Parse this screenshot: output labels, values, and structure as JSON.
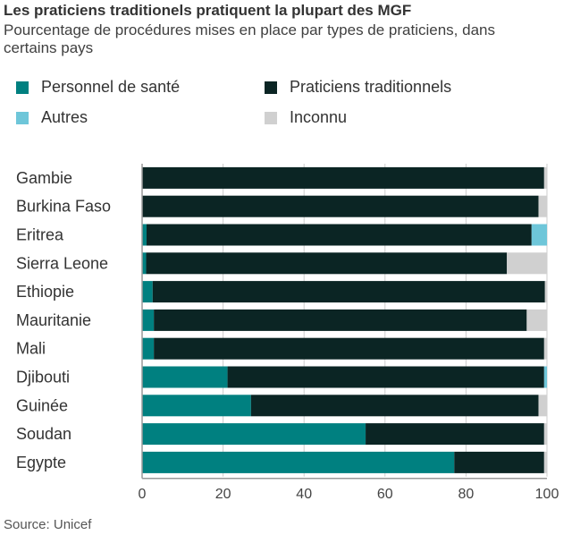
{
  "title": "Les praticiens traditionels pratiquent la plupart des MGF",
  "subtitle": "Pourcentage de procédures mises en place par types de praticiens, dans certains pays",
  "source": "Source: Unicef",
  "chart_data": {
    "type": "bar",
    "orientation": "horizontal",
    "stacked": true,
    "categories": [
      "Gambie",
      "Burkina Faso",
      "Eritrea",
      "Sierra Leone",
      "Ethiopie",
      "Mauritanie",
      "Mali",
      "Djibouti",
      "Guinée",
      "Soudan",
      "Egypte"
    ],
    "series": [
      {
        "name": "Personnel de santé",
        "color": "#008080",
        "values": [
          0,
          0,
          1.1,
          1,
          2.6,
          2.9,
          2.9,
          21.1,
          26.9,
          55.2,
          77.1
        ]
      },
      {
        "name": "Praticiens traditionnels",
        "color": "#0b2524",
        "values": [
          99.3,
          97.9,
          95.1,
          89.1,
          96.9,
          92.1,
          96.4,
          78.2,
          71,
          44.1,
          22.2
        ]
      },
      {
        "name": "Autres",
        "color": "#6ec6d9",
        "values": [
          0,
          0,
          3.8,
          0,
          0,
          0,
          0,
          0.7,
          0,
          0,
          0
        ]
      },
      {
        "name": "Inconnu",
        "color": "#d0d0d0",
        "values": [
          0.7,
          2.1,
          0,
          9.9,
          0.5,
          5,
          0.7,
          0,
          2.1,
          0.7,
          0.7
        ]
      }
    ],
    "xlim": [
      0,
      100
    ],
    "xticks": [
      "0",
      "20",
      "40",
      "60",
      "80",
      "100"
    ],
    "grid": true,
    "legend_placement": "top"
  }
}
